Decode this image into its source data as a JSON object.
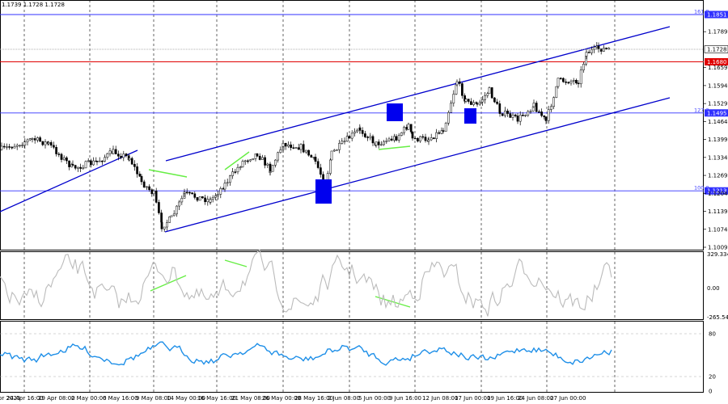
{
  "header": {
    "ohlc_text": "1.1739 1.1728 1.1728"
  },
  "colors": {
    "background": "#ffffff",
    "grid": "#000000",
    "channel": "#0000cc",
    "level_blue": "#3030ff",
    "level_red": "#e00000",
    "divergence": "#66ee44",
    "marker": "#0000ee",
    "candle": "#000000",
    "cci": "#bbbbbb",
    "rsi": "#1e8fe8",
    "current_price": "#888888"
  },
  "price_axis": {
    "ticks": [
      "1.1789",
      "1.1659",
      "1.1594",
      "1.1529",
      "1.1464",
      "1.1399",
      "1.1334",
      "1.1269",
      "1.1204",
      "1.1139",
      "1.1074",
      "1.1009"
    ],
    "current_price": "1.1728"
  },
  "levels": [
    {
      "label": "161.8",
      "price": "1.1851",
      "color": "blue"
    },
    {
      "label": "",
      "price": "1.1680",
      "color": "red"
    },
    {
      "label": "127.2",
      "price": "1.1495",
      "color": "blue"
    },
    {
      "label": "100.0",
      "price": "1.1213",
      "color": "blue"
    }
  ],
  "cci_axis": {
    "ticks": [
      "329.3341",
      "0.00",
      "-265.544"
    ]
  },
  "rsi_axis": {
    "ticks": [
      "80",
      "20",
      "0"
    ]
  },
  "time_axis": {
    "labels": [
      "19 Apr 2025",
      "24 Apr 16:00",
      "29 Apr 08:00",
      "2 May 00:00",
      "6 May 16:00",
      "9 May 08:00",
      "14 May 00:00",
      "16 May 16:00",
      "21 May 08:00",
      "26 May 00:00",
      "28 May 16:00",
      "2 Jun 08:00",
      "5 Jun 00:00",
      "9 Jun 16:00",
      "12 Jun 08:00",
      "17 Jun 00:00",
      "19 Jun 16:00",
      "24 Jun 08:00",
      "27 Jun 00:00"
    ]
  },
  "icons": {
    "markers": "blue-square-marker",
    "channel": "trend-channel-line",
    "divergence": "divergence-line"
  }
}
